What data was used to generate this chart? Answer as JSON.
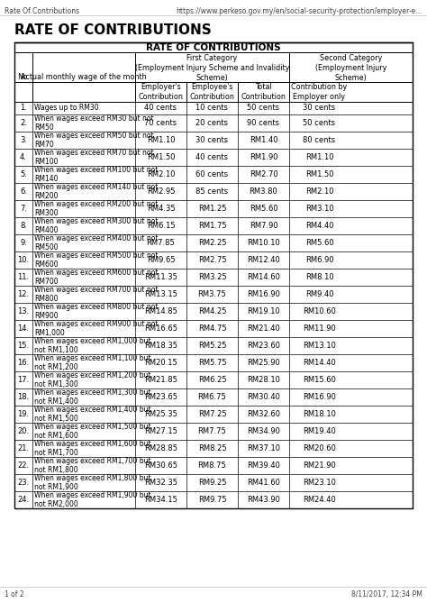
{
  "title": "RATE OF CONTRIBUTIONS",
  "page_header_left": "Rate Of Contributions",
  "page_header_right": "https://www.perkeso.gov.my/en/social-security-protection/employer-e...",
  "page_footer_left": "1 of 2",
  "page_footer_right": "8/11/2017, 12:34 PM",
  "table_title": "RATE OF CONTRIBUTIONS",
  "rows": [
    {
      "no": "1.",
      "wage": "Wages up to RM30",
      "emp": "40 cents",
      "ee": "10 cents",
      "total": "50 cents",
      "second": "30 cents",
      "two_line": false
    },
    {
      "no": "2.",
      "wage": "When wages exceed RM30 but not\nRM50",
      "emp": "70 cents",
      "ee": "20 cents",
      "total": "90 cents",
      "second": "50 cents",
      "two_line": true
    },
    {
      "no": "3.",
      "wage": "When wages exceed RM50 but not\nRM70",
      "emp": "RM1.10",
      "ee": "30 cents",
      "total": "RM1.40",
      "second": "80 cents",
      "two_line": true
    },
    {
      "no": "4.",
      "wage": "When wages exceed RM70 but not\nRM100",
      "emp": "RM1.50",
      "ee": "40 cents",
      "total": "RM1.90",
      "second": "RM1.10",
      "two_line": true
    },
    {
      "no": "5.",
      "wage": "When wages exceed RM100 but not\nRM140",
      "emp": "RM2.10",
      "ee": "60 cents",
      "total": "RM2.70",
      "second": "RM1.50",
      "two_line": true
    },
    {
      "no": "6.",
      "wage": "When wages exceed RM140 but not\nRM200",
      "emp": "RM2.95",
      "ee": "85 cents",
      "total": "RM3.80",
      "second": "RM2.10",
      "two_line": true
    },
    {
      "no": "7.",
      "wage": "When wages exceed RM200 but not\nRM300",
      "emp": "RM4.35",
      "ee": "RM1.25",
      "total": "RM5.60",
      "second": "RM3.10",
      "two_line": true
    },
    {
      "no": "8.",
      "wage": "When wages exceed RM300 but not\nRM400",
      "emp": "RM6.15",
      "ee": "RM1.75",
      "total": "RM7.90",
      "second": "RM4.40",
      "two_line": true
    },
    {
      "no": "9.",
      "wage": "When wages exceed RM400 but not\nRM500",
      "emp": "RM7.85",
      "ee": "RM2.25",
      "total": "RM10.10",
      "second": "RM5.60",
      "two_line": true
    },
    {
      "no": "10.",
      "wage": "When wages exceed RM500 but not\nRM600",
      "emp": "RM9.65",
      "ee": "RM2.75",
      "total": "RM12.40",
      "second": "RM6.90",
      "two_line": true
    },
    {
      "no": "11.",
      "wage": "When wages exceed RM600 but not\nRM700",
      "emp": "RM11.35",
      "ee": "RM3.25",
      "total": "RM14.60",
      "second": "RM8.10",
      "two_line": true
    },
    {
      "no": "12.",
      "wage": "When wages exceed RM700 but not\nRM800",
      "emp": "RM13.15",
      "ee": "RM3.75",
      "total": "RM16.90",
      "second": "RM9.40",
      "two_line": true
    },
    {
      "no": "13.",
      "wage": "When wages exceed RM800 but not\nRM900",
      "emp": "RM14.85",
      "ee": "RM4.25",
      "total": "RM19.10",
      "second": "RM10.60",
      "two_line": true
    },
    {
      "no": "14.",
      "wage": "When wages exceed RM900 but not\nRM1,000",
      "emp": "RM16.65",
      "ee": "RM4.75",
      "total": "RM21.40",
      "second": "RM11.90",
      "two_line": true
    },
    {
      "no": "15.",
      "wage": "When wages exceed RM1,000 but\nnot RM1,100",
      "emp": "RM18.35",
      "ee": "RM5.25",
      "total": "RM23.60",
      "second": "RM13.10",
      "two_line": true
    },
    {
      "no": "16.",
      "wage": "When wages exceed RM1,100 but\nnot RM1,200",
      "emp": "RM20.15",
      "ee": "RM5.75",
      "total": "RM25.90",
      "second": "RM14.40",
      "two_line": true
    },
    {
      "no": "17.",
      "wage": "When wages exceed RM1,200 but\nnot RM1,300",
      "emp": "RM21.85",
      "ee": "RM6.25",
      "total": "RM28.10",
      "second": "RM15.60",
      "two_line": true
    },
    {
      "no": "18.",
      "wage": "When wages exceed RM1,300 but\nnot RM1,400",
      "emp": "RM23.65",
      "ee": "RM6.75",
      "total": "RM30.40",
      "second": "RM16.90",
      "two_line": true
    },
    {
      "no": "19.",
      "wage": "When wages exceed RM1,400 but\nnot RM1,500",
      "emp": "RM25.35",
      "ee": "RM7.25",
      "total": "RM32.60",
      "second": "RM18.10",
      "two_line": true
    },
    {
      "no": "20.",
      "wage": "When wages exceed RM1,500 but\nnot RM1,600",
      "emp": "RM27.15",
      "ee": "RM7.75",
      "total": "RM34.90",
      "second": "RM19.40",
      "two_line": true
    },
    {
      "no": "21.",
      "wage": "When wages exceed RM1,600 but\nnot RM1,700",
      "emp": "RM28.85",
      "ee": "RM8.25",
      "total": "RM37.10",
      "second": "RM20.60",
      "two_line": true
    },
    {
      "no": "22.",
      "wage": "When wages exceed RM1,700 but\nnot RM1,800",
      "emp": "RM30.65",
      "ee": "RM8.75",
      "total": "RM39.40",
      "second": "RM21.90",
      "two_line": true
    },
    {
      "no": "23.",
      "wage": "When wages exceed RM1,800 but\nnot RM1,900",
      "emp": "RM32.35",
      "ee": "RM9.25",
      "total": "RM41.60",
      "second": "RM23.10",
      "two_line": true
    },
    {
      "no": "24.",
      "wage": "When wages exceed RM1,900 but\nnot RM2,000",
      "emp": "RM34.15",
      "ee": "RM9.75",
      "total": "RM43.90",
      "second": "RM24.40",
      "two_line": true
    }
  ],
  "bg_color": "#ffffff",
  "text_color": "#000000"
}
